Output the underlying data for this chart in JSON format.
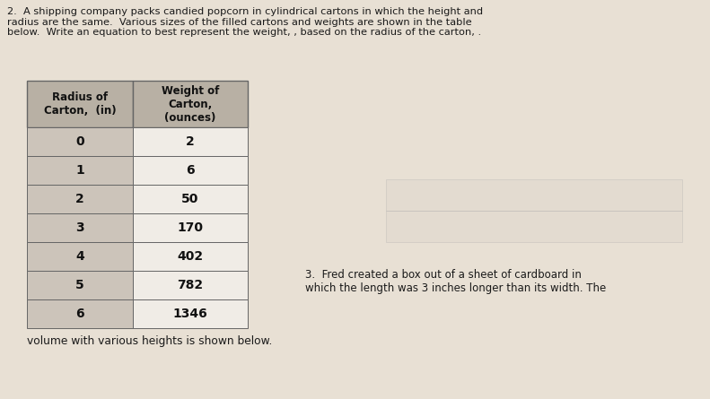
{
  "page_bg": "#e8e0d4",
  "question2_text": "2.  A shipping company packs candied popcorn in cylindrical cartons in which the height and\nradius are the same.  Various sizes of the filled cartons and weights are shown in the table\nbelow.  Write an equation to best represent the weight, , based on the radius of the carton, .",
  "question3_text": "3.  Fred created a box out of a sheet of cardboard in\nwhich the length was 3 inches longer than its width. The",
  "footer_text": "volume with various heights is shown below.",
  "table_header_col1": "Radius of\nCarton,  (in)",
  "table_header_col2": "Weight of\nCarton,\n(ounces)",
  "table_data": [
    [
      0,
      2
    ],
    [
      1,
      6
    ],
    [
      2,
      50
    ],
    [
      3,
      170
    ],
    [
      4,
      402
    ],
    [
      5,
      782
    ],
    [
      6,
      1346
    ]
  ],
  "header_bg": "#b8b0a4",
  "col1_bg": "#ccc4ba",
  "col2_bg": "#f0ece6",
  "edge_color": "#666666"
}
